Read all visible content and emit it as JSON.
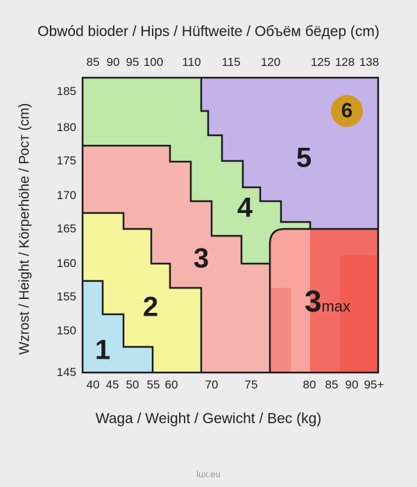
{
  "header": {
    "title": "Obwód bioder / Hips / Hüftweite / Объём бёдер (cm)"
  },
  "left_axis": {
    "title": "Wzrost / Height / Körperhöhe / Рост (cm)"
  },
  "bottom_axis": {
    "title": "Waga / Weight / Gewicht / Вес (kg)"
  },
  "chart_data": {
    "type": "size-chart",
    "hips_ticks": [
      "85",
      "90",
      "95",
      "100",
      "110",
      "115",
      "120",
      "125",
      "128",
      "138"
    ],
    "weight_ticks": [
      "40",
      "45",
      "50",
      "55",
      "60",
      "70",
      "75",
      "80",
      "85",
      "90",
      "95+"
    ],
    "height_ticks": [
      "185",
      "180",
      "175",
      "170",
      "165",
      "160",
      "155",
      "150",
      "145"
    ],
    "zones": [
      {
        "label": "1",
        "color": "#b8e3f1"
      },
      {
        "label": "2",
        "color": "#f6f59a"
      },
      {
        "label": "3",
        "color": "#f6b3ae"
      },
      {
        "label": "4",
        "color": "#bfe8a9"
      },
      {
        "label": "5",
        "color": "#c3b3e8"
      },
      {
        "label": "6",
        "color": "#d19a1f"
      },
      {
        "label": "3",
        "sub": "max",
        "color": "#f36b62"
      }
    ]
  },
  "footer": {
    "site": "lux.eu"
  }
}
